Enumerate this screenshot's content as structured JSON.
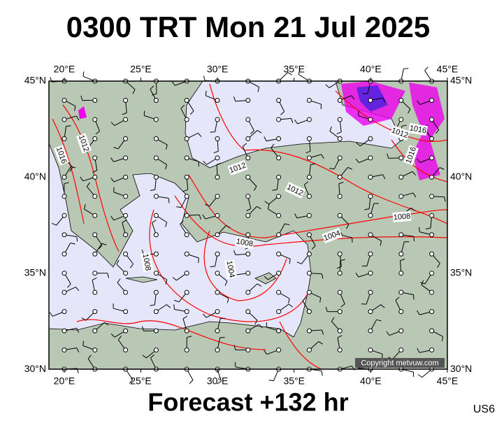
{
  "header": {
    "title": "0300 TRT Mon 21 Jul 2025"
  },
  "map": {
    "lon_labels": [
      "20°E",
      "25°E",
      "30°E",
      "35°E",
      "40°E",
      "45°E"
    ],
    "lat_labels": [
      "45°N",
      "40°N",
      "35°N",
      "30°N"
    ],
    "isobar_labels": [
      "1012",
      "1016",
      "1012",
      "1012",
      "1008",
      "1004",
      "1008",
      "1008",
      "1004",
      "1016",
      "1012",
      "1016"
    ],
    "copyright": "Copyright metvuw.com"
  },
  "footer": {
    "forecast": "Forecast +132 hr",
    "code": "US6"
  }
}
